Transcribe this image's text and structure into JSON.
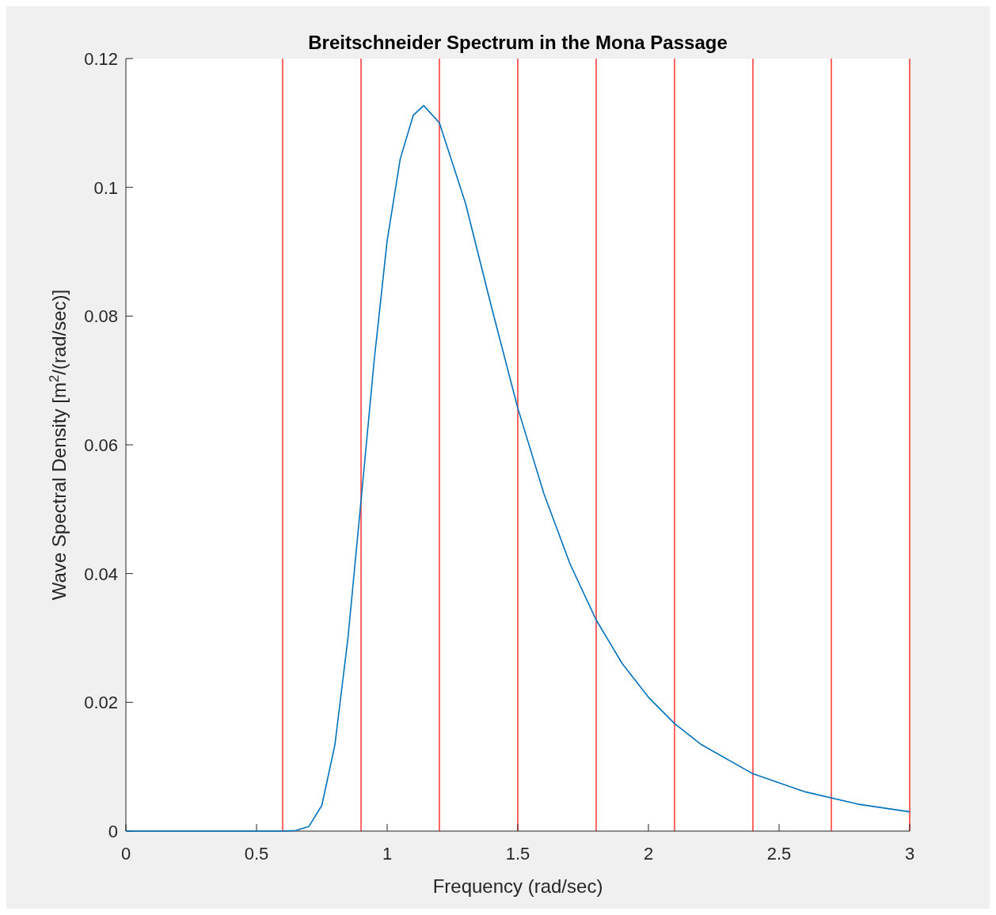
{
  "chart_data": {
    "type": "line",
    "title": "Breitschneider Spectrum in the Mona Passage",
    "xlabel": "Frequency (rad/sec)",
    "ylabel": "Wave Spectral Density [m$^{2}$/(rad/sec)]",
    "x": [
      0,
      0.5,
      0.6,
      0.65,
      0.7,
      0.75,
      0.8,
      0.85,
      0.9,
      0.95,
      1.0,
      1.05,
      1.1,
      1.14,
      1.2,
      1.3,
      1.4,
      1.5,
      1.6,
      1.7,
      1.8,
      1.9,
      2.0,
      2.1,
      2.2,
      2.4,
      2.6,
      2.8,
      3.0
    ],
    "series": [
      {
        "color": "#0072bd",
        "values": [
          0,
          0,
          0,
          0.0001,
          0.0007,
          0.004,
          0.0134,
          0.03,
          0.0513,
          0.073,
          0.0917,
          0.1044,
          0.1112,
          0.1127,
          0.11,
          0.0975,
          0.0813,
          0.0657,
          0.0524,
          0.0415,
          0.0328,
          0.026,
          0.0208,
          0.0167,
          0.0135,
          0.0089,
          0.0061,
          0.0042,
          0.003
        ]
      }
    ],
    "xlim": [
      0,
      3
    ],
    "xticks": [
      0,
      0.5,
      1,
      1.5,
      2,
      2.5,
      3
    ],
    "ylim": [
      0,
      0.12
    ],
    "yticks": [
      0,
      0.02,
      0.04,
      0.06,
      0.08,
      0.1,
      0.12
    ],
    "ref_lines": [
      {
        "axis": "x",
        "value": 0.6,
        "color": "#ff0000"
      },
      {
        "axis": "x",
        "value": 0.9,
        "color": "#ff0000"
      },
      {
        "axis": "x",
        "value": 1.2,
        "color": "#ff0000"
      },
      {
        "axis": "x",
        "value": 1.5,
        "color": "#ff0000"
      },
      {
        "axis": "x",
        "value": 1.8,
        "color": "#ff0000"
      },
      {
        "axis": "x",
        "value": 2.1,
        "color": "#ff0000"
      },
      {
        "axis": "x",
        "value": 2.4,
        "color": "#ff0000"
      },
      {
        "axis": "x",
        "value": 2.7,
        "color": "#ff0000"
      },
      {
        "axis": "x",
        "value": 3.0,
        "color": "#ff0000"
      }
    ],
    "grid": false,
    "marker": "none",
    "line_style": "solid"
  }
}
